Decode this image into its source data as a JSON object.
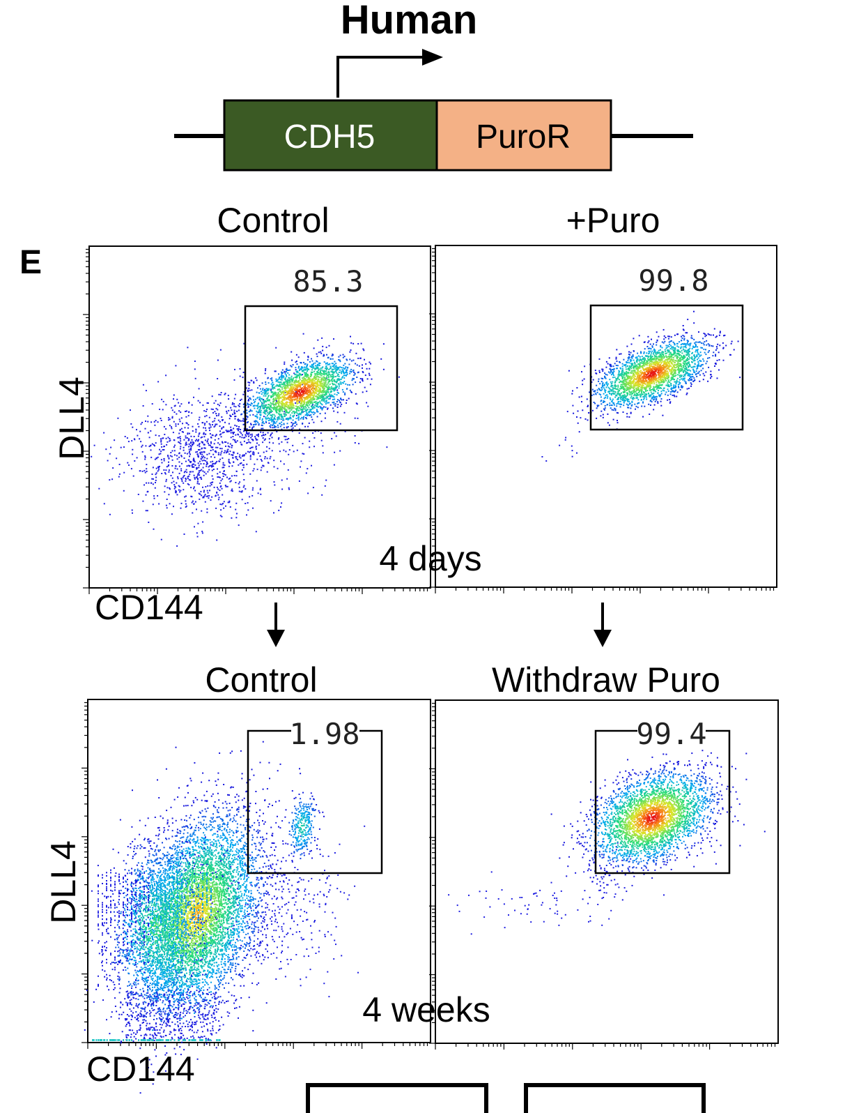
{
  "figure": {
    "header": "Human",
    "construct": {
      "left_box": "CDH5",
      "right_box": "PuroR",
      "left_color": "#3b5a24",
      "right_color": "#f4b186"
    },
    "panel_letter": "E",
    "time_labels": [
      "4 days",
      "4 weeks"
    ],
    "axis_labels": {
      "x": "CD144",
      "y": "DLL4"
    }
  },
  "chart_data": [
    {
      "type": "scatter",
      "title": "Control",
      "xlabel": "CD144",
      "ylabel": "DLL4",
      "gate_percent": "85.3",
      "row": "4 days",
      "populations": [
        {
          "name": "",
          "center": [
            0.62,
            0.37
          ],
          "density": "high",
          "events": 2200
        },
        {
          "name": "",
          "center": [
            0.33,
            0.63
          ],
          "density": "low",
          "events": 1100
        }
      ]
    },
    {
      "type": "scatter",
      "title": "+Puro",
      "xlabel": "",
      "ylabel": "",
      "gate_percent": "99.8",
      "row": "4 days",
      "populations": [
        {
          "name": "",
          "center": [
            0.64,
            0.37
          ],
          "density": "high",
          "events": 2400
        }
      ]
    },
    {
      "type": "scatter",
      "title": "Control",
      "xlabel": "CD144",
      "ylabel": "DLL4",
      "gate_percent": "1.98",
      "row": "4 weeks",
      "populations": [
        {
          "name": "",
          "center": [
            0.33,
            0.63
          ],
          "density": "very high",
          "events": 9000
        },
        {
          "name": "",
          "center": [
            0.63,
            0.38
          ],
          "density": "low",
          "events": 300
        }
      ]
    },
    {
      "type": "scatter",
      "title": "Withdraw Puro",
      "xlabel": "",
      "ylabel": "",
      "gate_percent": "99.4",
      "row": "4 weeks",
      "populations": [
        {
          "name": "",
          "center": [
            0.65,
            0.36
          ],
          "density": "high",
          "events": 3200
        }
      ]
    }
  ]
}
